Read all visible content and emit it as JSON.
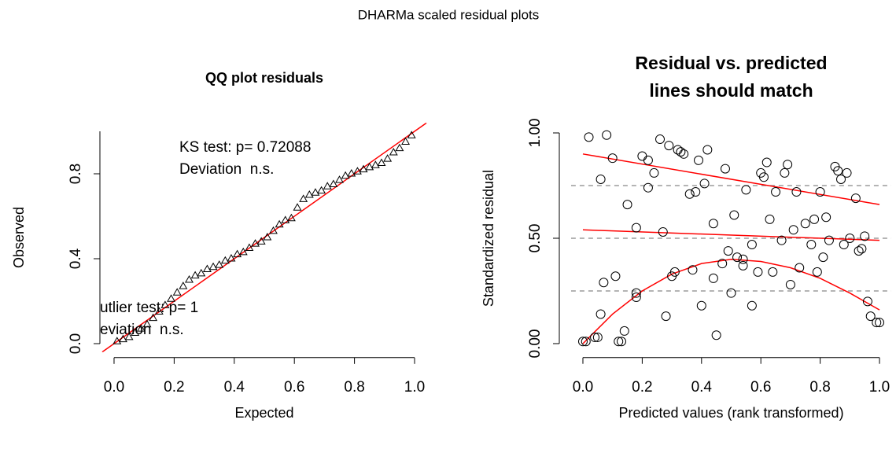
{
  "title": "DHARMa scaled residual plots",
  "chart_data": [
    {
      "type": "scatter",
      "title": "QQ plot residuals",
      "xlabel": "Expected",
      "ylabel": "Observed",
      "marker": "triangle",
      "color": "#000000",
      "x": [
        0.01,
        0.03,
        0.05,
        0.07,
        0.09,
        0.11,
        0.13,
        0.15,
        0.17,
        0.19,
        0.21,
        0.23,
        0.25,
        0.27,
        0.29,
        0.31,
        0.33,
        0.35,
        0.37,
        0.39,
        0.41,
        0.43,
        0.45,
        0.47,
        0.49,
        0.51,
        0.53,
        0.55,
        0.57,
        0.59,
        0.61,
        0.63,
        0.65,
        0.67,
        0.69,
        0.71,
        0.73,
        0.75,
        0.77,
        0.79,
        0.81,
        0.83,
        0.85,
        0.87,
        0.89,
        0.91,
        0.93,
        0.95,
        0.97,
        0.99
      ],
      "values": [
        0.01,
        0.02,
        0.03,
        0.05,
        0.07,
        0.09,
        0.12,
        0.15,
        0.18,
        0.21,
        0.24,
        0.27,
        0.3,
        0.32,
        0.33,
        0.35,
        0.36,
        0.37,
        0.39,
        0.4,
        0.42,
        0.43,
        0.45,
        0.47,
        0.48,
        0.5,
        0.53,
        0.56,
        0.58,
        0.59,
        0.64,
        0.68,
        0.7,
        0.71,
        0.72,
        0.74,
        0.75,
        0.77,
        0.79,
        0.8,
        0.81,
        0.82,
        0.83,
        0.84,
        0.85,
        0.87,
        0.9,
        0.92,
        0.95,
        0.98
      ],
      "abline": {
        "intercept": 0,
        "slope": 1,
        "color": "#ff0000"
      },
      "annotations": [
        "KS test: p= 0.72088",
        "Deviation  n.s.",
        "utlier test: p= 1",
        "eviation  n.s."
      ],
      "xlim": [
        -0.04,
        1.04
      ],
      "ylim": [
        -0.04,
        1.04
      ],
      "xticks": [
        {
          "value": 0,
          "label": "0.0"
        },
        0.2,
        0.4,
        0.6,
        0.8,
        {
          "value": 1,
          "label": "1.0"
        }
      ],
      "yticks": [
        {
          "value": 0,
          "label": "0.0"
        },
        0.4,
        0.8
      ]
    },
    {
      "type": "scatter",
      "title": [
        "Residual vs. predicted",
        "lines should match"
      ],
      "xlabel": "Predicted values (rank transformed)",
      "ylabel": "Standardized residual",
      "marker": "circle",
      "color": "#000000",
      "x": [
        0.0,
        0.01,
        0.02,
        0.04,
        0.05,
        0.06,
        0.06,
        0.07,
        0.08,
        0.1,
        0.11,
        0.12,
        0.13,
        0.14,
        0.15,
        0.18,
        0.18,
        0.18,
        0.2,
        0.22,
        0.22,
        0.24,
        0.26,
        0.27,
        0.28,
        0.29,
        0.3,
        0.31,
        0.32,
        0.33,
        0.34,
        0.36,
        0.37,
        0.38,
        0.39,
        0.4,
        0.41,
        0.42,
        0.44,
        0.44,
        0.45,
        0.47,
        0.48,
        0.49,
        0.5,
        0.51,
        0.52,
        0.54,
        0.54,
        0.55,
        0.57,
        0.57,
        0.59,
        0.6,
        0.61,
        0.62,
        0.63,
        0.64,
        0.65,
        0.67,
        0.68,
        0.69,
        0.7,
        0.71,
        0.72,
        0.73,
        0.75,
        0.77,
        0.78,
        0.79,
        0.8,
        0.81,
        0.82,
        0.83,
        0.85,
        0.86,
        0.87,
        0.88,
        0.89,
        0.9,
        0.92,
        0.93,
        0.94,
        0.95,
        0.96,
        0.97,
        0.99,
        1.0
      ],
      "values": [
        0.01,
        0.01,
        0.98,
        0.03,
        0.03,
        0.14,
        0.78,
        0.29,
        0.99,
        0.88,
        0.32,
        0.01,
        0.01,
        0.06,
        0.66,
        0.55,
        0.24,
        0.22,
        0.89,
        0.87,
        0.74,
        0.81,
        0.97,
        0.53,
        0.13,
        0.94,
        0.32,
        0.34,
        0.92,
        0.91,
        0.9,
        0.71,
        0.35,
        0.72,
        0.87,
        0.18,
        0.76,
        0.92,
        0.57,
        0.31,
        0.04,
        0.38,
        0.83,
        0.44,
        0.24,
        0.61,
        0.41,
        0.4,
        0.37,
        0.73,
        0.47,
        0.18,
        0.34,
        0.81,
        0.79,
        0.86,
        0.59,
        0.34,
        0.72,
        0.49,
        0.81,
        0.85,
        0.28,
        0.54,
        0.72,
        0.36,
        0.57,
        0.47,
        0.59,
        0.34,
        0.72,
        0.41,
        0.6,
        0.49,
        0.84,
        0.82,
        0.78,
        0.47,
        0.81,
        0.5,
        0.69,
        0.44,
        0.45,
        0.51,
        0.2,
        0.13,
        0.1,
        0.1
      ],
      "hlines": [
        0.25,
        0.5,
        0.75
      ],
      "hline_color": "#888888",
      "lines": [
        {
          "color": "#ff0000",
          "x": [
            0,
            1
          ],
          "values": [
            0.9,
            0.66
          ]
        },
        {
          "color": "#ff0000",
          "x": [
            0,
            1
          ],
          "values": [
            0.54,
            0.49
          ]
        },
        {
          "color": "#ff0000",
          "x": [
            0,
            0.1,
            0.2,
            0.3,
            0.4,
            0.5,
            0.6,
            0.7,
            0.8,
            0.9,
            1.0
          ],
          "values": [
            0.0,
            0.14,
            0.25,
            0.33,
            0.38,
            0.4,
            0.39,
            0.36,
            0.31,
            0.24,
            0.16
          ]
        }
      ],
      "xlim": [
        -0.04,
        1.04
      ],
      "ylim": [
        -0.04,
        1.04
      ],
      "xticks": [
        {
          "value": 0,
          "label": "0.0"
        },
        0.2,
        0.4,
        0.6,
        0.8,
        {
          "value": 1,
          "label": "1.0"
        }
      ],
      "yticks": [
        {
          "value": 0,
          "label": "0.00"
        },
        {
          "value": 0.5,
          "label": "0.50"
        },
        {
          "value": 1,
          "label": "1.00"
        }
      ]
    }
  ]
}
